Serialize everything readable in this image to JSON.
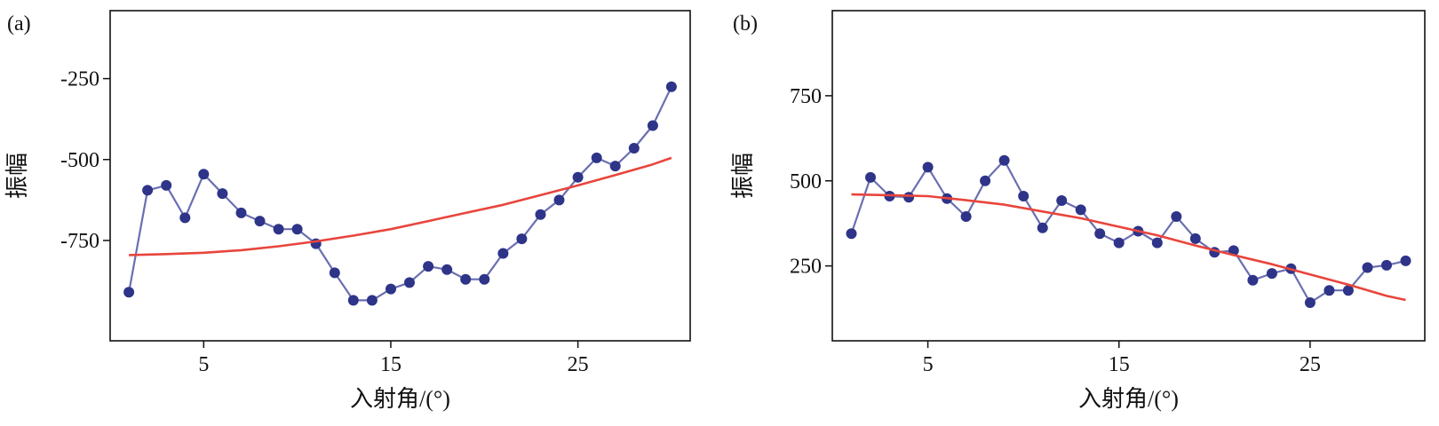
{
  "chart_data": [
    {
      "type": "line",
      "panel_label": "(a)",
      "xlabel": "入射角/(°)",
      "ylabel": "振幅",
      "xlim": [
        0,
        31
      ],
      "ylim": [
        -1060,
        -40
      ],
      "xticks": [
        5,
        15,
        25
      ],
      "yticks": [
        -250,
        -500,
        -750
      ],
      "series": [
        {
          "role": "observed",
          "color": "#2e3488",
          "line_color": "#6a6fb0",
          "x": [
            1,
            2,
            3,
            4,
            5,
            6,
            7,
            8,
            9,
            10,
            11,
            12,
            13,
            14,
            15,
            16,
            17,
            18,
            19,
            20,
            21,
            22,
            23,
            24,
            25,
            26,
            27,
            28,
            29,
            30
          ],
          "y": [
            -910,
            -595,
            -580,
            -680,
            -545,
            -605,
            -665,
            -690,
            -715,
            -715,
            -760,
            -850,
            -935,
            -935,
            -900,
            -880,
            -830,
            -840,
            -870,
            -870,
            -790,
            -745,
            -670,
            -625,
            -555,
            -495,
            -520,
            -465,
            -395,
            -275
          ]
        },
        {
          "role": "fit",
          "color": "#e8453c",
          "x": [
            1,
            3,
            5,
            7,
            9,
            11,
            13,
            15,
            17,
            19,
            21,
            23,
            25,
            27,
            29,
            30
          ],
          "y": [
            -795,
            -792,
            -788,
            -780,
            -768,
            -753,
            -735,
            -715,
            -690,
            -665,
            -640,
            -610,
            -580,
            -548,
            -515,
            -495
          ]
        }
      ]
    },
    {
      "type": "line",
      "panel_label": "(b)",
      "xlabel": "入射角/(°)",
      "ylabel": "振幅",
      "xlim": [
        0,
        31
      ],
      "ylim": [
        30,
        1000
      ],
      "xticks": [
        5,
        15,
        25
      ],
      "yticks": [
        750,
        500,
        250
      ],
      "series": [
        {
          "role": "observed",
          "color": "#2e3488",
          "line_color": "#6a6fb0",
          "x": [
            1,
            2,
            3,
            4,
            5,
            6,
            7,
            8,
            9,
            10,
            11,
            12,
            13,
            14,
            15,
            16,
            17,
            18,
            19,
            20,
            21,
            22,
            23,
            24,
            25,
            26,
            27,
            28,
            29,
            30
          ],
          "y": [
            345,
            510,
            455,
            452,
            540,
            448,
            395,
            500,
            560,
            455,
            362,
            442,
            415,
            345,
            318,
            352,
            318,
            395,
            330,
            290,
            295,
            208,
            228,
            242,
            142,
            178,
            178,
            245,
            252,
            265
          ]
        },
        {
          "role": "fit",
          "color": "#e8453c",
          "x": [
            1,
            3,
            5,
            7,
            9,
            11,
            13,
            15,
            17,
            19,
            21,
            23,
            25,
            27,
            29,
            30
          ],
          "y": [
            460,
            458,
            455,
            443,
            430,
            410,
            390,
            365,
            340,
            310,
            282,
            255,
            225,
            195,
            162,
            150
          ]
        }
      ]
    }
  ]
}
